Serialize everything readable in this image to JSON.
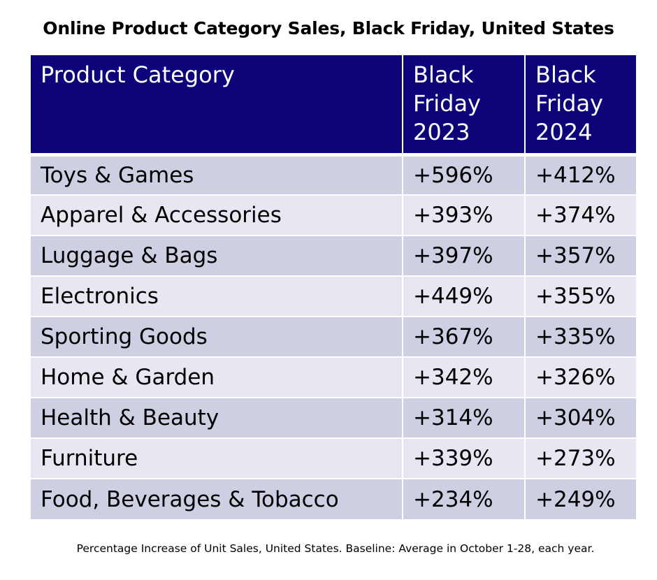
{
  "title": "Online Product Category Sales, Black Friday, United States",
  "chart_data": {
    "type": "table",
    "title": "Online Product Category Sales, Black Friday, United States",
    "columns": [
      "Product Category",
      "Black Friday 2023",
      "Black Friday 2024"
    ],
    "rows": [
      [
        "Toys & Games",
        "+596%",
        "+412%"
      ],
      [
        "Apparel & Accessories",
        "+393%",
        "+374%"
      ],
      [
        "Luggage & Bags",
        "+397%",
        "+357%"
      ],
      [
        "Electronics",
        "+449%",
        "+355%"
      ],
      [
        "Sporting Goods",
        "+367%",
        "+335%"
      ],
      [
        "Home & Garden",
        "+342%",
        "+326%"
      ],
      [
        "Health & Beauty",
        "+314%",
        "+304%"
      ],
      [
        "Furniture",
        "+339%",
        "+273%"
      ],
      [
        "Food, Beverages & Tobacco",
        "+234%",
        "+249%"
      ]
    ],
    "footnote": "Percentage Increase of Unit Sales, United States. Baseline: Average in October 1-28, each year."
  },
  "colors": {
    "header_bg": "#0d0479",
    "header_text": "#ffffff",
    "row_dark": "#cfcfe3",
    "row_light": "#e7e7f1"
  }
}
